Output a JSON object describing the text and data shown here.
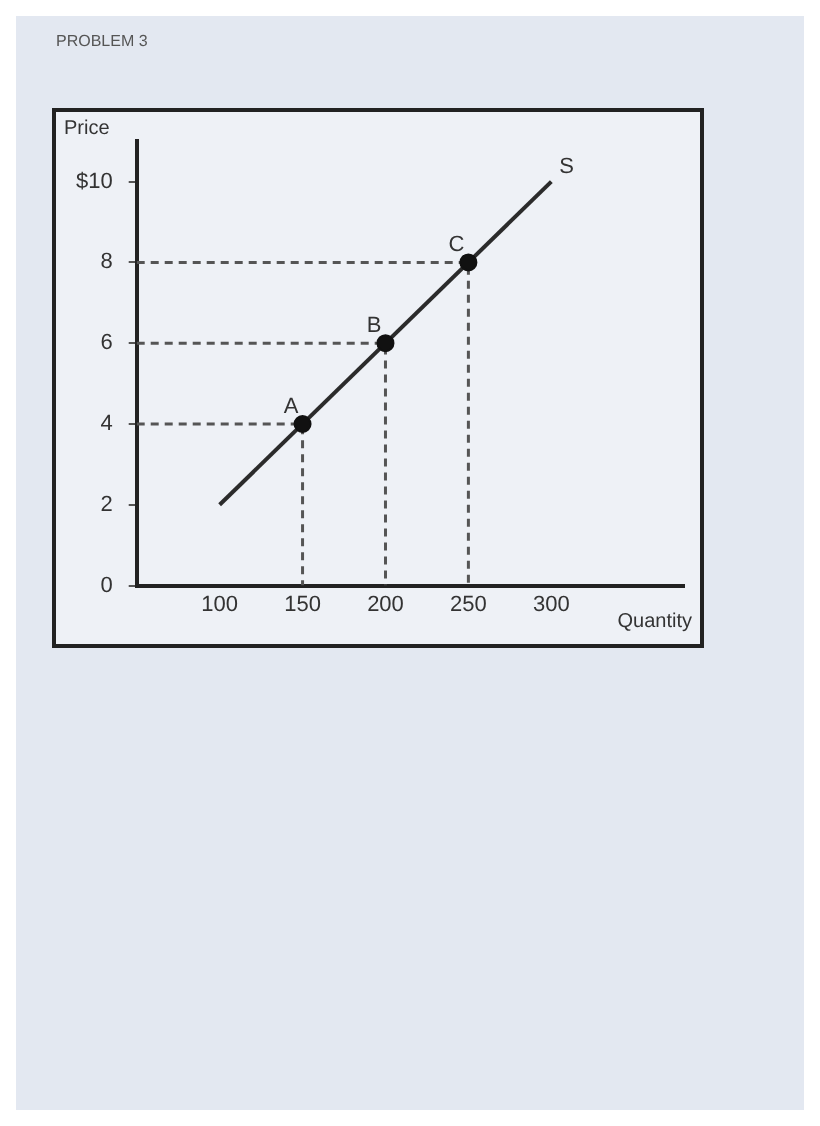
{
  "chart_data": {
    "type": "line",
    "title": "PROBLEM 3",
    "xlabel": "Quantity",
    "ylabel": "Price",
    "xlim": [
      50,
      380
    ],
    "xticks": [
      100,
      150,
      200,
      250,
      300
    ],
    "ylim": [
      0,
      11
    ],
    "yticks": [
      0,
      2,
      4,
      6,
      8,
      {
        "value": 10,
        "label": "$10"
      }
    ],
    "grid": false,
    "series": [
      {
        "name": "S",
        "type": "line",
        "color": "#2b2b2b",
        "x": [
          100,
          300
        ],
        "values": [
          2,
          10
        ],
        "marker": "none"
      },
      {
        "type": "line",
        "color": "#555555",
        "x": [
          50,
          150,
          150
        ],
        "values": [
          4,
          4,
          0
        ],
        "marker": "none",
        "line_style": "dashed"
      },
      {
        "type": "line",
        "color": "#555555",
        "x": [
          50,
          200,
          200
        ],
        "values": [
          6,
          6,
          0
        ],
        "marker": "none",
        "line_style": "dashed"
      },
      {
        "type": "line",
        "color": "#555555",
        "x": [
          50,
          250,
          250
        ],
        "values": [
          8,
          8,
          0
        ],
        "marker": "none",
        "line_style": "dashed"
      },
      {
        "type": "scatter",
        "color": "#111111",
        "x": [
          150,
          200,
          250
        ],
        "values": [
          4,
          6,
          8
        ],
        "marker": "circle"
      }
    ],
    "annotations": [
      {
        "text": "A",
        "x": 150,
        "y": 4
      },
      {
        "text": "B",
        "x": 200,
        "y": 6
      },
      {
        "text": "C",
        "x": 250,
        "y": 8
      }
    ]
  }
}
